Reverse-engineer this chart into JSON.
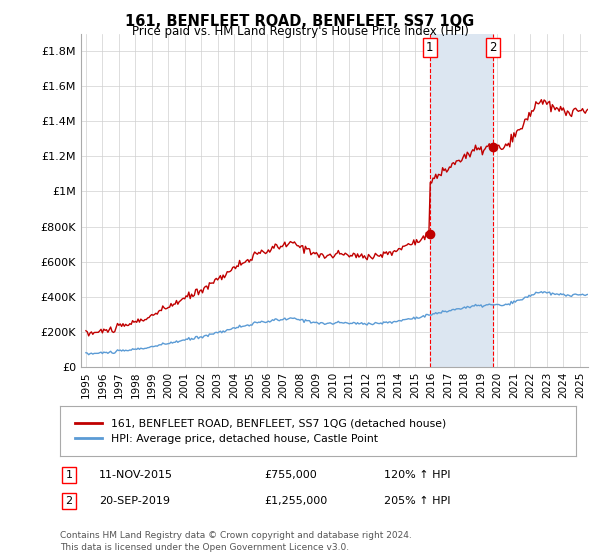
{
  "title": "161, BENFLEET ROAD, BENFLEET, SS7 1QG",
  "subtitle": "Price paid vs. HM Land Registry's House Price Index (HPI)",
  "ylabel_ticks": [
    "£0",
    "£200K",
    "£400K",
    "£600K",
    "£800K",
    "£1M",
    "£1.2M",
    "£1.4M",
    "£1.6M",
    "£1.8M"
  ],
  "ytick_vals": [
    0,
    200000,
    400000,
    600000,
    800000,
    1000000,
    1200000,
    1400000,
    1600000,
    1800000
  ],
  "ylim": [
    0,
    1900000
  ],
  "xlim_start": 1994.7,
  "xlim_end": 2025.5,
  "xticks": [
    1995,
    1996,
    1997,
    1998,
    1999,
    2000,
    2001,
    2002,
    2003,
    2004,
    2005,
    2006,
    2007,
    2008,
    2009,
    2010,
    2011,
    2012,
    2013,
    2014,
    2015,
    2016,
    2017,
    2018,
    2019,
    2020,
    2021,
    2022,
    2023,
    2024,
    2025
  ],
  "sale1_year": 2015,
  "sale1_month": 11,
  "sale1_price": 755000,
  "sale1_label": "1",
  "sale2_year": 2019,
  "sale2_month": 9,
  "sale2_price": 1255000,
  "sale2_label": "2",
  "legend_line1": "161, BENFLEET ROAD, BENFLEET, SS7 1QG (detached house)",
  "legend_line2": "HPI: Average price, detached house, Castle Point",
  "table_row1": [
    "1",
    "11-NOV-2015",
    "£755,000",
    "120% ↑ HPI"
  ],
  "table_row2": [
    "2",
    "20-SEP-2019",
    "£1,255,000",
    "205% ↑ HPI"
  ],
  "footnote1": "Contains HM Land Registry data © Crown copyright and database right 2024.",
  "footnote2": "This data is licensed under the Open Government Licence v3.0.",
  "hpi_color": "#5b9bd5",
  "price_color": "#c00000",
  "shaded_color": "#dce6f1",
  "dashed_color": "#ff0000",
  "grid_color": "#d0d0d0",
  "background_color": "#ffffff"
}
